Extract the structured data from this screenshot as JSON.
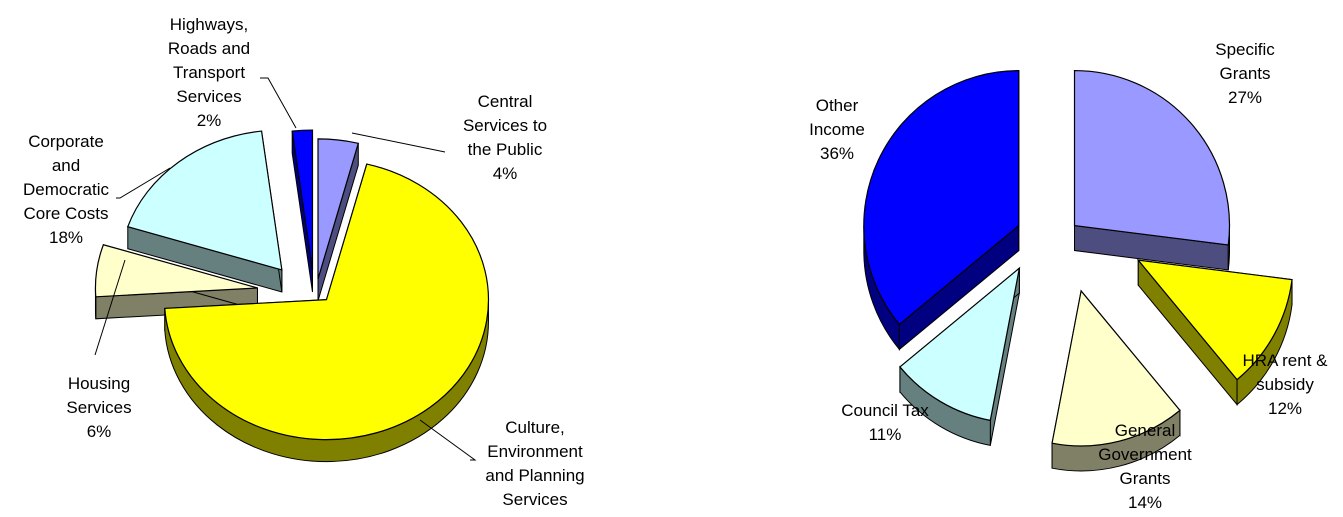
{
  "chart_data": [
    {
      "type": "pie",
      "style": "exploded 3D pie",
      "slices": [
        {
          "label": [
            "Central",
            "Services to",
            "the Public"
          ],
          "percent": "4%",
          "value": 4,
          "color": "#9999ff"
        },
        {
          "label": [
            "Culture,",
            "Environment",
            "and Planning",
            "Services"
          ],
          "percent": "70%",
          "value": 70,
          "color": "#ffff00"
        },
        {
          "label": [
            "Housing",
            "Services"
          ],
          "percent": "6%",
          "value": 6,
          "color": "#ffffcc"
        },
        {
          "label": [
            "Corporate",
            "and",
            "Democratic",
            "Core Costs"
          ],
          "percent": "18%",
          "value": 18,
          "color": "#ccffff"
        },
        {
          "label": [
            "Highways,",
            "Roads and",
            "Transport",
            "Services"
          ],
          "percent": "2%",
          "value": 2,
          "color": "#0000ff"
        }
      ]
    },
    {
      "type": "pie",
      "style": "exploded 3D pie",
      "slices": [
        {
          "label": [
            "Specific",
            "Grants"
          ],
          "percent": "27%",
          "value": 27,
          "color": "#9999ff"
        },
        {
          "label": [
            "HRA rent &",
            "subsidy"
          ],
          "percent": "12%",
          "value": 12,
          "color": "#ffff00"
        },
        {
          "label": [
            "General",
            "Government",
            "Grants"
          ],
          "percent": "14%",
          "value": 14,
          "color": "#ffffcc"
        },
        {
          "label": [
            "Council Tax"
          ],
          "percent": "11%",
          "value": 11,
          "color": "#ccffff"
        },
        {
          "label": [
            "Other",
            "Income"
          ],
          "percent": "36%",
          "value": 36,
          "color": "#0000ff"
        }
      ]
    }
  ]
}
